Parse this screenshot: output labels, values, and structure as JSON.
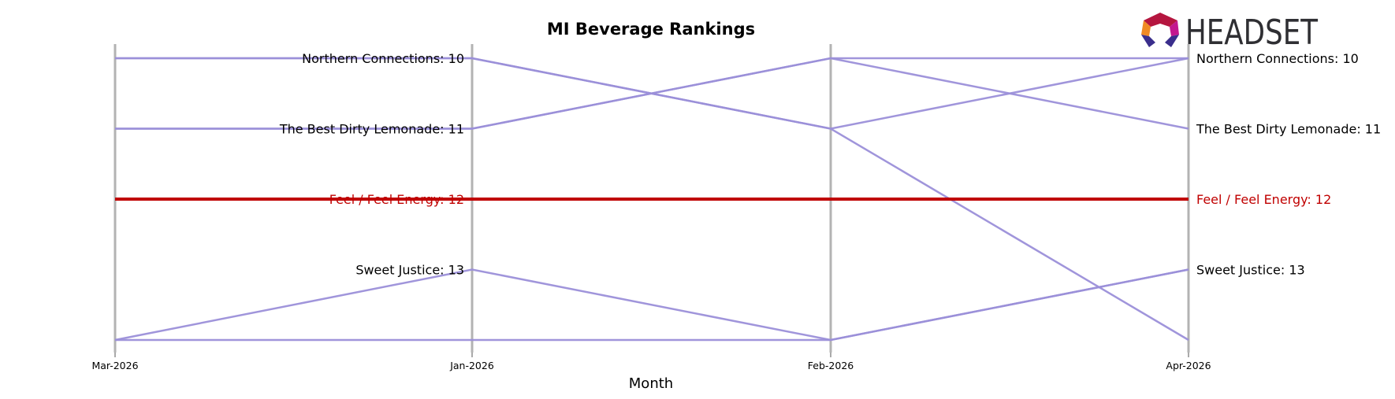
{
  "chart_data": {
    "type": "line",
    "title": "MI Beverage Rankings",
    "xlabel": "Month",
    "ylabel": "",
    "categories": [
      "Mar-2026",
      "Jan-2026",
      "Feb-2026",
      "Apr-2026"
    ],
    "y_rank_range": [
      10,
      14
    ],
    "y_inverted": true,
    "grid": false,
    "highlight_color": "#c00000",
    "line_color": "#9b8fd9",
    "series": [
      {
        "name": "Northern Connections",
        "values": [
          10,
          10,
          11,
          10
        ]
      },
      {
        "name": "The Best Dirty Lemonade",
        "values": [
          11,
          11,
          10,
          11
        ]
      },
      {
        "name": "Feel / Feel Energy",
        "values": [
          12,
          12,
          12,
          12
        ]
      },
      {
        "name": "Sweet Justice",
        "values": [
          14,
          13,
          14,
          13
        ]
      },
      {
        "name": "",
        "values": [
          10,
          10,
          11,
          14
        ]
      },
      {
        "name": "",
        "values": [
          14,
          14,
          14,
          13
        ]
      },
      {
        "name": "",
        "values": [
          11,
          11,
          10,
          10
        ]
      }
    ],
    "labels_left": [
      {
        "text": "Northern Connections: 10",
        "rank": 10,
        "highlight": false
      },
      {
        "text": "The Best Dirty Lemonade: 11",
        "rank": 11,
        "highlight": false
      },
      {
        "text": "Feel / Feel Energy: 12",
        "rank": 12,
        "highlight": true
      },
      {
        "text": "Sweet Justice: 13",
        "rank": 13,
        "highlight": false
      }
    ],
    "labels_right": [
      {
        "text": "Northern Connections: 10",
        "rank": 10,
        "highlight": false
      },
      {
        "text": "The Best Dirty Lemonade: 11",
        "rank": 11,
        "highlight": false
      },
      {
        "text": "Feel / Feel Energy: 12",
        "rank": 12,
        "highlight": true
      },
      {
        "text": "Sweet Justice: 13",
        "rank": 13,
        "highlight": false
      }
    ]
  },
  "logo": {
    "text": "HEADSET"
  }
}
